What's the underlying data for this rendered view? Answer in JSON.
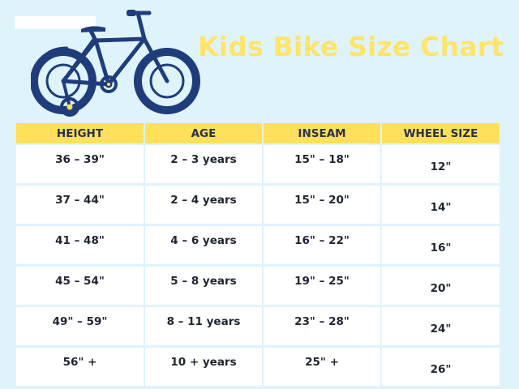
{
  "title": "Kids Bike Size Chart",
  "illustration": {
    "icon": "kids-bike-with-training-wheels-icon",
    "frame_color": "#1f3d7a",
    "accent_color": "#ffe05a"
  },
  "table": {
    "headers": [
      "HEIGHT",
      "AGE",
      "INSEAM",
      "WHEEL SIZE"
    ],
    "rows": [
      [
        "36 – 39\"",
        "2 – 3 years",
        "15\" – 18\"",
        "12\""
      ],
      [
        "37 – 44\"",
        "2 – 4 years",
        "15\" – 20\"",
        "14\""
      ],
      [
        "41 – 48\"",
        "4 – 6 years",
        "16\" – 22\"",
        "16\""
      ],
      [
        "45 – 54\"",
        "5 – 8 years",
        "19\" – 25\"",
        "20\""
      ],
      [
        "49\" – 59\"",
        "8 – 11 years",
        "23\" – 28\"",
        "24\""
      ],
      [
        "56\" +",
        "10 + years",
        "25\" +",
        "26\""
      ]
    ]
  },
  "colors": {
    "background": "#dff3fb",
    "header_fill": "#ffe05a",
    "title": "#ffe46b",
    "cell_fill": "#ffffff"
  }
}
